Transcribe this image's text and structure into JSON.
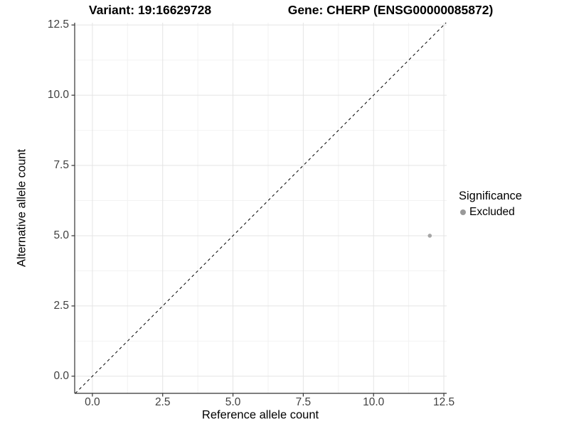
{
  "titles": {
    "variant": "Variant: 19:16629728",
    "gene": "Gene: CHERP (ENSG00000085872)"
  },
  "axes": {
    "x": {
      "label": "Reference allele count",
      "ticks": [
        "0.0",
        "2.5",
        "5.0",
        "7.5",
        "10.0",
        "12.5"
      ]
    },
    "y": {
      "label": "Alternative allele count",
      "ticks": [
        "0.0",
        "2.5",
        "5.0",
        "7.5",
        "10.0",
        "12.5"
      ]
    }
  },
  "legend": {
    "title": "Significance",
    "items": [
      {
        "label": "Excluded",
        "color": "#999999"
      }
    ]
  },
  "chart_data": {
    "type": "scatter",
    "title_left": "Variant: 19:16629728",
    "title_right": "Gene: CHERP (ENSG00000085872)",
    "xlabel": "Reference allele count",
    "ylabel": "Alternative allele count",
    "xlim": [
      -0.63,
      12.6
    ],
    "ylim": [
      -0.61,
      12.58
    ],
    "x_ticks": [
      0,
      2.5,
      5,
      7.5,
      10,
      12.5
    ],
    "y_ticks": [
      0,
      2.5,
      5,
      7.5,
      10,
      12.5
    ],
    "x_minor_ticks": [
      1.25,
      3.75,
      6.25,
      8.75,
      11.25
    ],
    "y_minor_ticks": [
      1.25,
      3.75,
      6.25,
      8.75,
      11.25
    ],
    "grid": true,
    "legend_position": "right",
    "identity_line": {
      "slope": 1,
      "intercept": 0,
      "style": "dashed",
      "color": "#000000"
    },
    "series": [
      {
        "name": "Excluded",
        "color": "#a6a6a6",
        "point_radius": 2.8,
        "points": [
          [
            12,
            5
          ]
        ]
      }
    ],
    "colors": {
      "background": "#ffffff",
      "grid_major": "#e4e4e4",
      "grid_minor": "#f2f2f2",
      "axis": "#333333",
      "tick_text": "#404040"
    }
  }
}
